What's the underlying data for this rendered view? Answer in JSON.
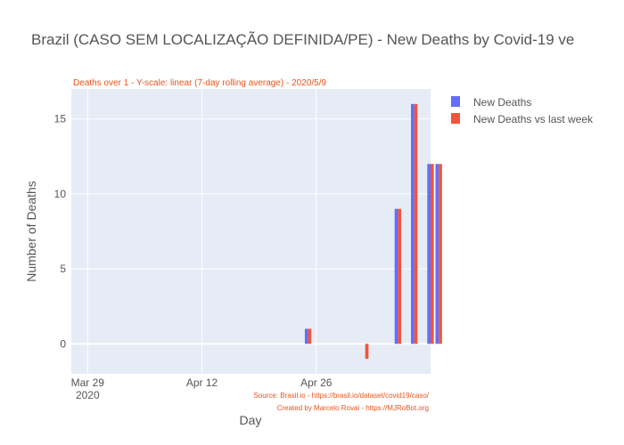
{
  "chart_data": {
    "type": "bar",
    "title": "Brazil (CASO SEM LOCALIZAÇÃO DEFINIDA/PE) - New Deaths by Covid-19 ve",
    "subtitle": "Deaths over 1 - Y-scale: linear (7-day rolling average) - 2020/5/9",
    "xlabel": "Day",
    "ylabel": "Number of Deaths",
    "x_ticks": [
      {
        "date": "2020-03-29",
        "label": "Mar 29",
        "sublabel": "2020"
      },
      {
        "date": "2020-04-12",
        "label": "Apr 12",
        "sublabel": ""
      },
      {
        "date": "2020-04-26",
        "label": "Apr 26",
        "sublabel": ""
      }
    ],
    "xlim": [
      "2020-03-27",
      "2020-05-10"
    ],
    "y_ticks": [
      0,
      5,
      10,
      15
    ],
    "ylim": [
      -2,
      17
    ],
    "grid": true,
    "legend_position": "top-right",
    "series": [
      {
        "name": "New Deaths",
        "color": "#636efa",
        "points": [
          {
            "date": "2020-04-25",
            "value": 1
          },
          {
            "date": "2020-05-06",
            "value": 9
          },
          {
            "date": "2020-05-08",
            "value": 16
          },
          {
            "date": "2020-05-10",
            "value": 12
          },
          {
            "date": "2020-05-11",
            "value": 12
          }
        ]
      },
      {
        "name": "New Deaths vs last week",
        "color": "#ef553b",
        "points": [
          {
            "date": "2020-04-25",
            "value": 1
          },
          {
            "date": "2020-05-02",
            "value": -1
          },
          {
            "date": "2020-05-06",
            "value": 9
          },
          {
            "date": "2020-05-08",
            "value": 16
          },
          {
            "date": "2020-05-10",
            "value": 12
          },
          {
            "date": "2020-05-11",
            "value": 12
          }
        ]
      }
    ],
    "annotations": [
      "Source: Brasil.io - https://brasil.io/dataset/covid19/caso/",
      "Created by Marcelo Rovai - https://MJRoBot.org"
    ]
  }
}
